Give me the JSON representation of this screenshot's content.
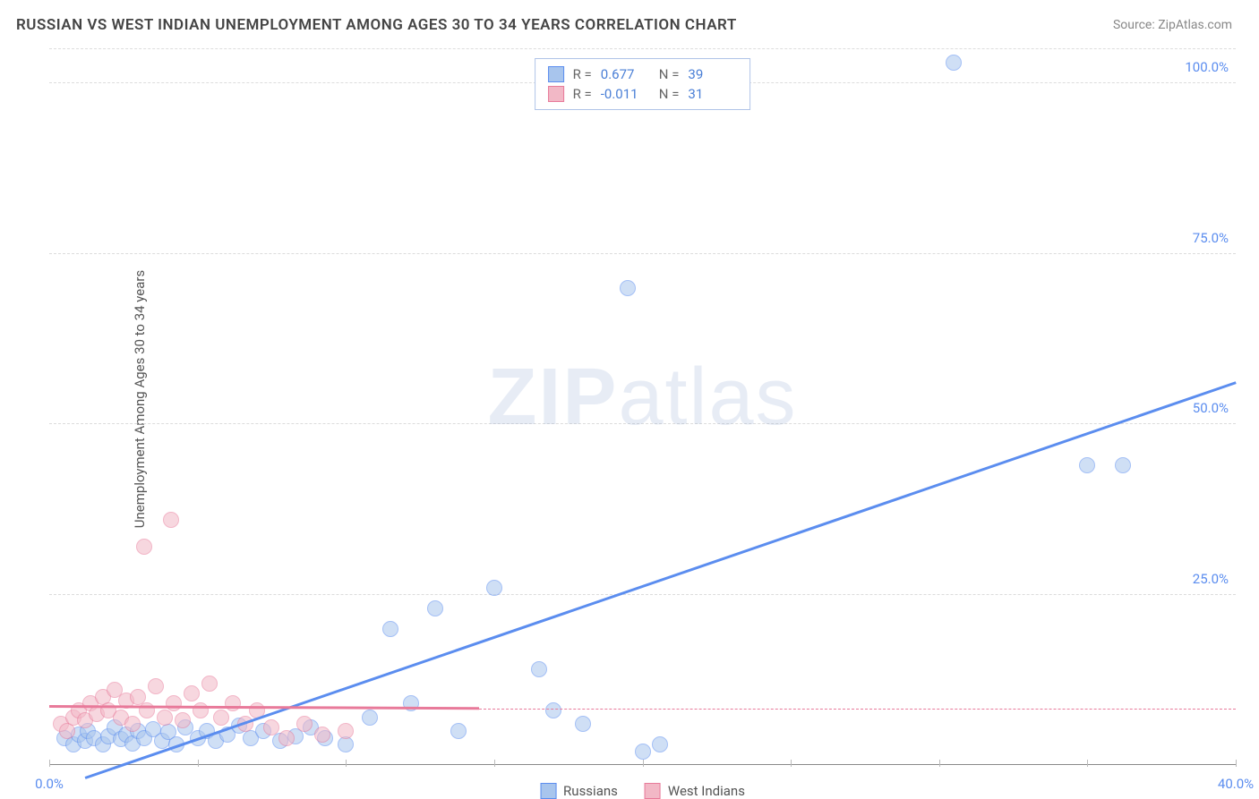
{
  "title": "RUSSIAN VS WEST INDIAN UNEMPLOYMENT AMONG AGES 30 TO 34 YEARS CORRELATION CHART",
  "source": "Source: ZipAtlas.com",
  "ylabel": "Unemployment Among Ages 30 to 34 years",
  "watermark_bold": "ZIP",
  "watermark_rest": "atlas",
  "chart": {
    "type": "scatter",
    "xlim": [
      0,
      40
    ],
    "ylim": [
      0,
      105
    ],
    "xtick_values": [
      0,
      5,
      10,
      15,
      20,
      25,
      30,
      35,
      40
    ],
    "xtick_labels": {
      "0": "0.0%",
      "40": "40.0%"
    },
    "ytick_values": [
      25,
      50,
      75,
      100
    ],
    "ytick_labels": [
      "25.0%",
      "50.0%",
      "75.0%",
      "100.0%"
    ],
    "background_color": "#ffffff",
    "grid_color": "#dcdcdc",
    "axis_label_color": "#5b8def",
    "marker_radius": 9,
    "marker_opacity": 0.55,
    "series": [
      {
        "name": "Russians",
        "color_fill": "#a8c5ed",
        "color_stroke": "#5b8def",
        "R": "0.677",
        "N": "39",
        "trend": {
          "x1": 1.2,
          "y1": -2,
          "x2": 40,
          "y2": 56,
          "dash_from_x": 40
        },
        "points": [
          [
            0.5,
            4
          ],
          [
            0.8,
            3
          ],
          [
            1.0,
            4.5
          ],
          [
            1.2,
            3.5
          ],
          [
            1.3,
            5
          ],
          [
            1.5,
            4
          ],
          [
            1.8,
            3
          ],
          [
            2.0,
            4.2
          ],
          [
            2.2,
            5.5
          ],
          [
            2.4,
            3.8
          ],
          [
            2.6,
            4.5
          ],
          [
            2.8,
            3.2
          ],
          [
            3.0,
            5
          ],
          [
            3.2,
            4
          ],
          [
            3.5,
            5.2
          ],
          [
            3.8,
            3.5
          ],
          [
            4.0,
            4.8
          ],
          [
            4.3,
            3
          ],
          [
            4.6,
            5.5
          ],
          [
            5.0,
            4
          ],
          [
            5.3,
            5
          ],
          [
            5.6,
            3.5
          ],
          [
            6.0,
            4.5
          ],
          [
            6.4,
            5.8
          ],
          [
            6.8,
            4
          ],
          [
            7.2,
            5
          ],
          [
            7.8,
            3.5
          ],
          [
            8.3,
            4.2
          ],
          [
            8.8,
            5.5
          ],
          [
            9.3,
            4
          ],
          [
            10.0,
            3
          ],
          [
            10.8,
            7
          ],
          [
            11.5,
            20
          ],
          [
            12.2,
            9
          ],
          [
            13.0,
            23
          ],
          [
            13.8,
            5
          ],
          [
            15.0,
            26
          ],
          [
            16.5,
            14
          ],
          [
            17.0,
            8
          ],
          [
            18.0,
            6
          ],
          [
            19.5,
            70
          ],
          [
            20.0,
            2
          ],
          [
            20.6,
            3
          ],
          [
            30.5,
            103
          ],
          [
            35.0,
            44
          ],
          [
            36.2,
            44
          ]
        ]
      },
      {
        "name": "West Indians",
        "color_fill": "#f2b8c6",
        "color_stroke": "#e87a9a",
        "R": "-0.011",
        "N": "31",
        "trend": {
          "x1": 0,
          "y1": 8.5,
          "x2": 14.5,
          "y2": 8.2,
          "dash_from_x": 14.5,
          "dash_to_x": 40
        },
        "points": [
          [
            0.4,
            6
          ],
          [
            0.6,
            5
          ],
          [
            0.8,
            7
          ],
          [
            1.0,
            8
          ],
          [
            1.2,
            6.5
          ],
          [
            1.4,
            9
          ],
          [
            1.6,
            7.5
          ],
          [
            1.8,
            10
          ],
          [
            2.0,
            8
          ],
          [
            2.2,
            11
          ],
          [
            2.4,
            7
          ],
          [
            2.6,
            9.5
          ],
          [
            2.8,
            6
          ],
          [
            3.0,
            10
          ],
          [
            3.3,
            8
          ],
          [
            3.6,
            11.5
          ],
          [
            3.9,
            7
          ],
          [
            4.2,
            9
          ],
          [
            4.5,
            6.5
          ],
          [
            4.8,
            10.5
          ],
          [
            5.1,
            8
          ],
          [
            5.4,
            12
          ],
          [
            5.8,
            7
          ],
          [
            6.2,
            9
          ],
          [
            6.6,
            6
          ],
          [
            7.0,
            8
          ],
          [
            7.5,
            5.5
          ],
          [
            8.0,
            4
          ],
          [
            8.6,
            6
          ],
          [
            9.2,
            4.5
          ],
          [
            10.0,
            5
          ],
          [
            3.2,
            32
          ],
          [
            4.1,
            36
          ]
        ]
      }
    ]
  },
  "stat_box": {
    "r_label": "R  =",
    "n_label": "N  ="
  },
  "legend": {
    "items": [
      "Russians",
      "West Indians"
    ]
  }
}
